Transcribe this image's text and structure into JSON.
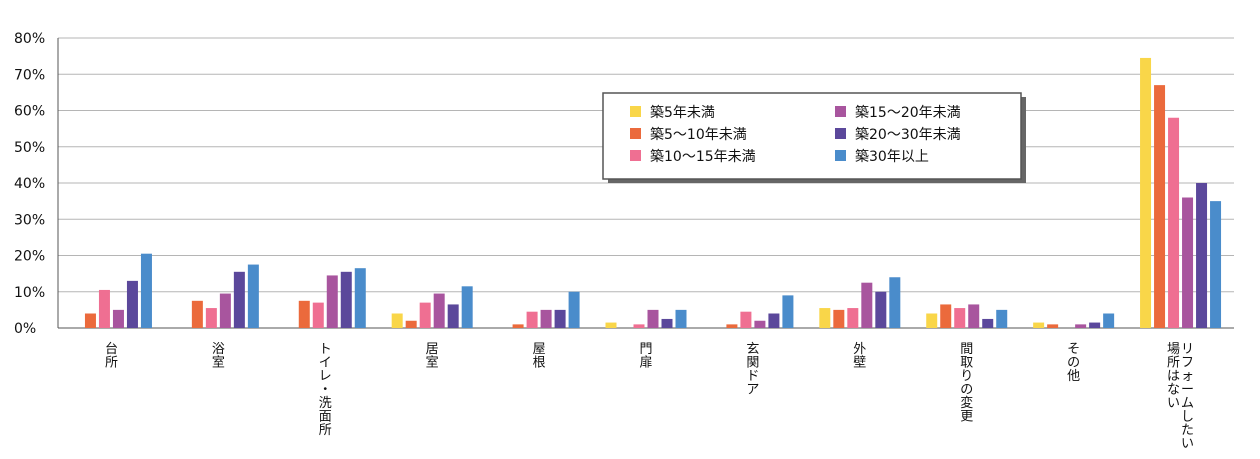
{
  "chart_data": {
    "type": "bar",
    "ylim": [
      0,
      80
    ],
    "yticks": [
      "0%",
      "10%",
      "20%",
      "30%",
      "40%",
      "50%",
      "60%",
      "70%",
      "80%"
    ],
    "grid": true,
    "legend_position": "top-center",
    "categories": [
      [
        "台",
        "所"
      ],
      [
        "浴",
        "室"
      ],
      [
        "ト",
        "イ",
        "レ",
        "・",
        "洗",
        "面",
        "所"
      ],
      [
        "居",
        "室"
      ],
      [
        "屋",
        "根"
      ],
      [
        "門",
        "扉"
      ],
      [
        "玄",
        "関",
        "ド",
        "ア"
      ],
      [
        "外",
        "壁"
      ],
      [
        "間",
        "取",
        "り",
        "の",
        "変",
        "更"
      ],
      [
        "そ",
        "の",
        "他"
      ],
      [
        [
          "リ",
          "フ",
          "ォ",
          "ー",
          "ム",
          "し",
          "た",
          "い"
        ],
        [
          "場",
          "所",
          "は",
          "な",
          "い"
        ]
      ]
    ],
    "series": [
      {
        "name": "築5年未満",
        "color": "#f9d649",
        "values": [
          0,
          0,
          0,
          4,
          0,
          1.5,
          0,
          5.5,
          4,
          1.5,
          74.5
        ]
      },
      {
        "name": "築5～10年未満",
        "color": "#eb6a3c",
        "values": [
          4,
          7.5,
          7.5,
          2,
          1,
          0,
          1,
          5,
          6.5,
          1,
          67
        ]
      },
      {
        "name": "築10～15年未満",
        "color": "#ef6f92",
        "values": [
          10.5,
          5.5,
          7,
          7,
          4.5,
          1,
          4.5,
          5.5,
          5.5,
          0,
          58
        ]
      },
      {
        "name": "築15～20年未満",
        "color": "#a8559e",
        "values": [
          5,
          9.5,
          14.5,
          9.5,
          5,
          5,
          2,
          12.5,
          6.5,
          1,
          36
        ]
      },
      {
        "name": "築20～30年未満",
        "color": "#5b489b",
        "values": [
          13,
          15.5,
          15.5,
          6.5,
          5,
          2.5,
          4,
          10,
          2.5,
          1.5,
          40
        ]
      },
      {
        "name": "築30年以上",
        "color": "#4a8ccb",
        "values": [
          20.5,
          17.5,
          16.5,
          11.5,
          10,
          5,
          9,
          14,
          5,
          4,
          35
        ]
      }
    ]
  }
}
